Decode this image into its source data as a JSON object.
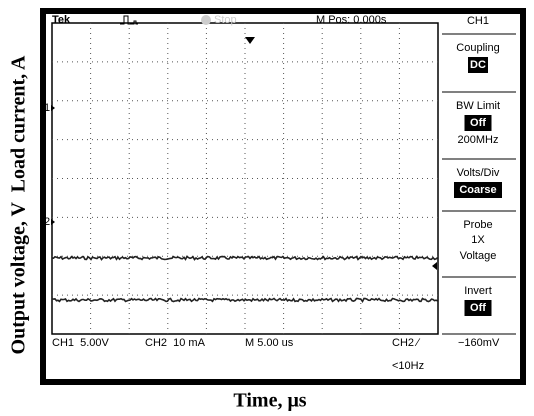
{
  "header": {
    "brand": "Tek",
    "status": "Stop",
    "position": "M Pos: 0.000s"
  },
  "menu": {
    "title": "CH1",
    "items": [
      {
        "label": "Coupling",
        "value": "DC"
      },
      {
        "label": "BW Limit",
        "value": "Off",
        "note": "200MHz"
      },
      {
        "label": "Volts/Div",
        "value": "Coarse"
      },
      {
        "label": "Probe",
        "lines": [
          "1X",
          "Voltage"
        ]
      },
      {
        "label": "Invert",
        "value": "Off"
      }
    ]
  },
  "markers": [
    "1",
    "2"
  ],
  "footer": {
    "ch1": "CH1  5.00V",
    "ch2": "CH2  10 mA",
    "time": "M 5.00 us",
    "trigger": "CH2 ∕",
    "level": "−160mV",
    "freq": "<10Hz"
  },
  "axes": {
    "x_label": "Time, μs",
    "y_label": "Output voltage, V  Load current, A"
  }
}
